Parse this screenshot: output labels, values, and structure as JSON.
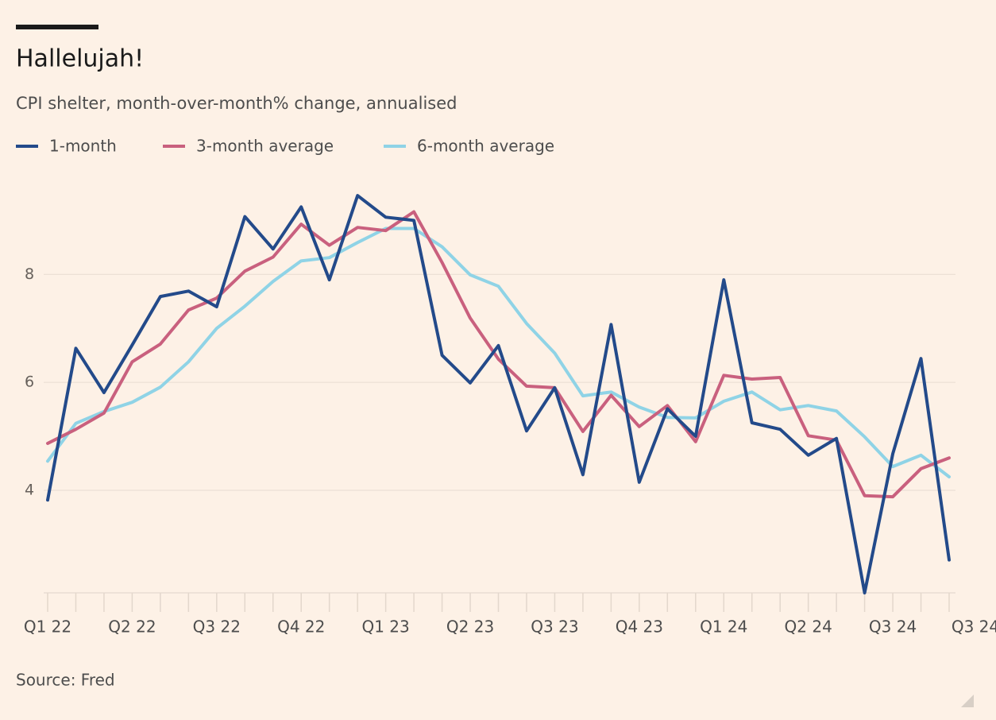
{
  "chart_data": {
    "type": "line",
    "title": "Hallelujah!",
    "subtitle": "CPI shelter, month-over-month% change, annualised",
    "source": "Source: Fred",
    "categories": [
      "Q1 22",
      null,
      null,
      "Q2 22",
      null,
      null,
      "Q3 22",
      null,
      null,
      "Q4 22",
      null,
      null,
      "Q1 23",
      null,
      null,
      "Q2 23",
      null,
      null,
      "Q3 23",
      null,
      null,
      "Q4 23",
      null,
      null,
      "Q1 24",
      null,
      null,
      "Q2 24",
      null,
      null,
      "Q3 24",
      null,
      "Q3 24"
    ],
    "series": [
      {
        "name": "1-month",
        "color": "#234a8a",
        "values": [
          3.82,
          6.63,
          5.81,
          6.69,
          7.59,
          7.69,
          7.4,
          9.07,
          8.47,
          9.25,
          7.9,
          9.46,
          9.06,
          9.0,
          6.5,
          5.99,
          6.68,
          5.1,
          5.9,
          4.29,
          7.07,
          4.15,
          5.51,
          5.0,
          7.9,
          5.25,
          5.13,
          4.65,
          4.96,
          2.1,
          4.68,
          6.44,
          2.71
        ]
      },
      {
        "name": "3-month average",
        "color": "#c9607e",
        "values": [
          4.87,
          5.13,
          5.43,
          6.38,
          6.71,
          7.34,
          7.56,
          8.06,
          8.32,
          8.93,
          8.54,
          8.87,
          8.81,
          9.16,
          8.22,
          7.19,
          6.43,
          5.93,
          5.9,
          5.09,
          5.76,
          5.18,
          5.57,
          4.9,
          6.13,
          6.06,
          6.09,
          5.01,
          4.93,
          3.9,
          3.88,
          4.4,
          4.6
        ]
      },
      {
        "name": "6-month average",
        "color": "#8fd3e6",
        "values": [
          4.54,
          5.24,
          5.46,
          5.63,
          5.91,
          6.38,
          7.0,
          7.41,
          7.87,
          8.25,
          8.31,
          8.59,
          8.85,
          8.85,
          8.51,
          7.99,
          7.78,
          7.09,
          6.54,
          5.75,
          5.82,
          5.54,
          5.35,
          5.34,
          5.65,
          5.82,
          5.49,
          5.57,
          5.47,
          4.99,
          4.44,
          4.65,
          4.25
        ]
      }
    ],
    "ylim": [
      2.1,
      9.8
    ],
    "yticks": [
      4,
      6,
      8
    ],
    "grid": true
  }
}
